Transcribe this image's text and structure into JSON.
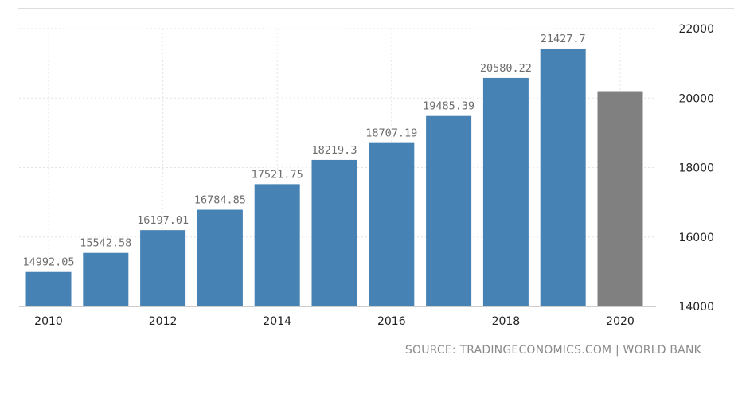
{
  "chart_data": {
    "type": "bar",
    "categories": [
      "2010",
      "2011",
      "2012",
      "2013",
      "2014",
      "2015",
      "2016",
      "2017",
      "2018",
      "2019",
      "2020"
    ],
    "values": [
      14992.05,
      15542.58,
      16197.01,
      16784.85,
      17521.75,
      18219.3,
      18707.19,
      19485.39,
      20580.22,
      21427.7,
      20200
    ],
    "data_labels": [
      "14992.05",
      "15542.58",
      "16197.01",
      "16784.85",
      "17521.75",
      "18219.3",
      "18707.19",
      "19485.39",
      "20580.22",
      "21427.7",
      ""
    ],
    "x_tick_labels": [
      "2010",
      "",
      "2012",
      "",
      "2014",
      "",
      "2016",
      "",
      "2018",
      "",
      "2020"
    ],
    "y_ticks": [
      14000,
      16000,
      18000,
      20000,
      22000
    ],
    "ylim": [
      14000,
      22000
    ],
    "y_axis_side": "right",
    "grid": true,
    "colors": {
      "bar": "#4682b4",
      "last_bar": "#808080"
    }
  },
  "source_text": "SOURCE: TRADINGECONOMICS.COM | WORLD BANK"
}
